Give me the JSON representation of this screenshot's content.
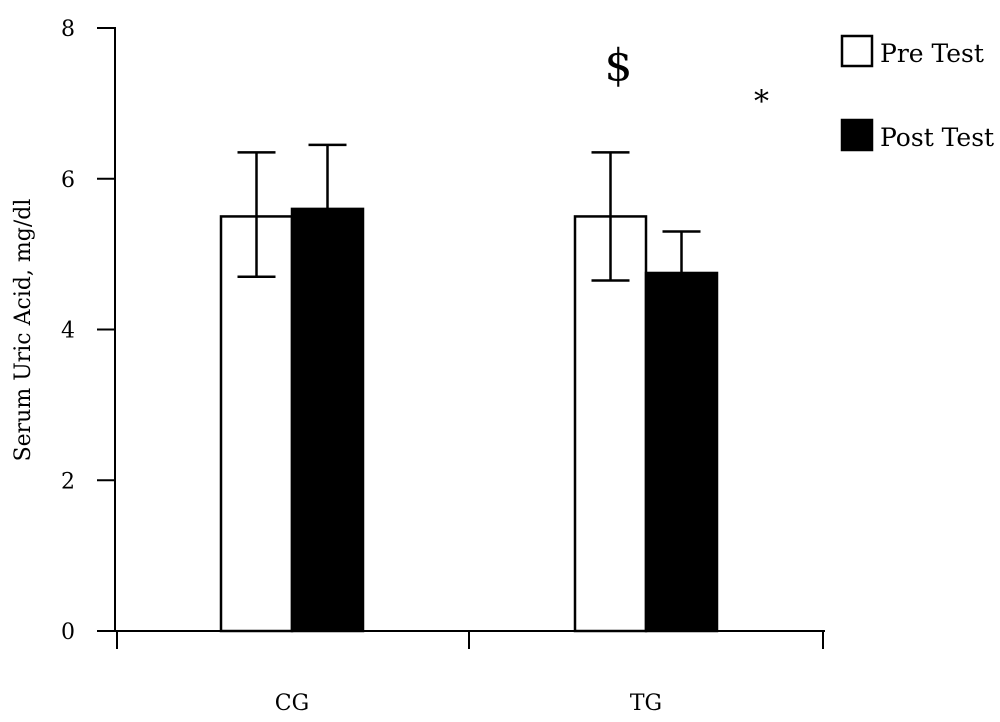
{
  "chart_data": {
    "type": "bar",
    "title": "",
    "xlabel": "",
    "ylabel": "Serum Uric Acid, mg/dl",
    "categories": [
      "CG",
      "TG"
    ],
    "ylim": [
      0,
      8
    ],
    "yticks": [
      "0",
      "2",
      "4",
      "6",
      "8"
    ],
    "grid": false,
    "legend_position": "top-right",
    "series": [
      {
        "name": "Pre Test",
        "color": "#ffffff",
        "values": [
          5.5,
          5.5
        ],
        "error_upper": [
          6.35,
          6.35
        ],
        "error_lower": [
          4.7,
          4.65
        ]
      },
      {
        "name": "Post Test",
        "color": "#000000",
        "values": [
          5.6,
          4.75
        ],
        "error_upper": [
          6.45,
          5.3
        ],
        "error_lower": [
          5.6,
          4.75
        ]
      }
    ],
    "annotations": [
      {
        "text": "$",
        "category": "TG",
        "series": "Pre Test",
        "y": 7.5
      },
      {
        "text": "*",
        "category": "TG",
        "series": "Post Test",
        "y": 7.2
      }
    ]
  }
}
